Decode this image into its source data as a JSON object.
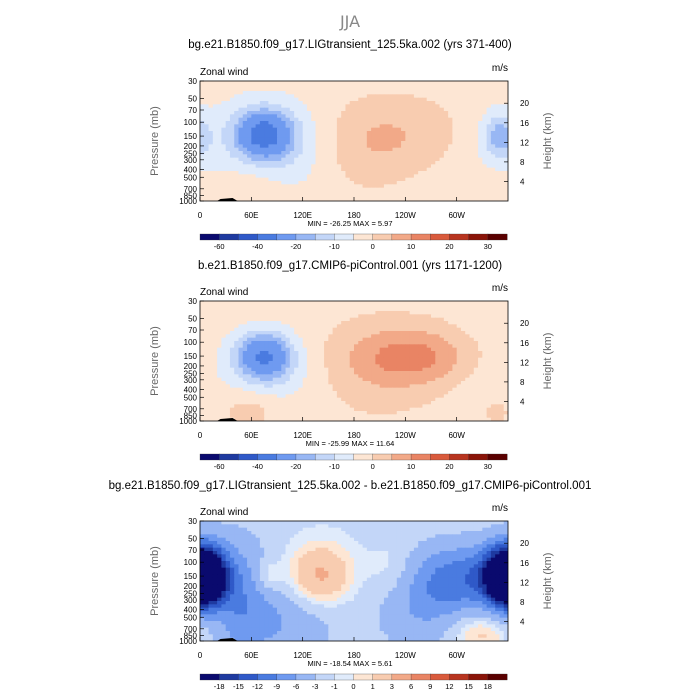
{
  "figure": {
    "season_title": "JJA"
  },
  "colors": {
    "main_scale": [
      "#0a0a6e",
      "#1e3aa0",
      "#2f59c8",
      "#4a7be0",
      "#6f9af0",
      "#98b7f4",
      "#c3d6f8",
      "#e0ebfb",
      "#fde6d4",
      "#f8ccb0",
      "#f2a988",
      "#e98464",
      "#d95a3c",
      "#b8341f",
      "#8a1408",
      "#5a0000"
    ],
    "diff_scale": [
      "#0a0a6e",
      "#1e3aa0",
      "#2f59c8",
      "#4a7be0",
      "#6f9af0",
      "#98b7f4",
      "#c3d6f8",
      "#e0ebfb",
      "#fde6d4",
      "#f8ccb0",
      "#f2a988",
      "#e98464",
      "#d95a3c",
      "#b8341f",
      "#8a1408",
      "#5a0000"
    ]
  },
  "chart_data": [
    {
      "type": "heatmap",
      "title": "bg.e21.B1850.f09_g17.LIGtransient_125.5ka.002 (yrs 371-400)",
      "variable_label": "Zonal wind",
      "units_label": "m/s",
      "ylabel_left": "Pressure (mb)",
      "ylabel_right": "Height (km)",
      "pressure_ticks": [
        "30",
        "50",
        "70",
        "100",
        "150",
        "200",
        "250",
        "300",
        "400",
        "500",
        "700",
        "850",
        "1000"
      ],
      "height_ticks": [
        "20",
        "16",
        "12",
        "8",
        "4"
      ],
      "x_ticks": [
        "0",
        "60E",
        "120E",
        "180",
        "120W",
        "60W"
      ],
      "stats": "MIN = -26.25   MAX =   5.97",
      "min": -26.25,
      "max": 5.97,
      "colorbar_labels": [
        "-60",
        "-40",
        "-20",
        "-10",
        "0",
        "10",
        "20",
        "30"
      ],
      "features": [
        {
          "lon": 75,
          "p": 140,
          "value": -26,
          "dlon": 22,
          "dlogp": 0.2
        },
        {
          "lon": 80,
          "p": 200,
          "value": -10,
          "dlon": 45,
          "dlogp": 0.4
        },
        {
          "lon": 350,
          "p": 150,
          "value": -14,
          "dlon": 14,
          "dlogp": 0.2
        },
        {
          "lon": 240,
          "p": 140,
          "value": 6,
          "dlon": 55,
          "dlogp": 0.35
        },
        {
          "lon": 190,
          "p": 220,
          "value": 4,
          "dlon": 40,
          "dlogp": 0.4
        },
        {
          "lon": 60,
          "p": 650,
          "value": 5,
          "dlon": 28,
          "dlogp": 0.25
        },
        {
          "lon": 330,
          "p": 800,
          "value": 4,
          "dlon": 25,
          "dlogp": 0.2
        },
        {
          "lon": 330,
          "p": 350,
          "value": -2,
          "dlon": 40,
          "dlogp": 0.6
        }
      ]
    },
    {
      "type": "heatmap",
      "title": "b.e21.B1850.f09_g17.CMIP6-piControl.001 (yrs 1171-1200)",
      "variable_label": "Zonal wind",
      "units_label": "m/s",
      "ylabel_left": "Pressure (mb)",
      "ylabel_right": "Height (km)",
      "pressure_ticks": [
        "30",
        "50",
        "70",
        "100",
        "150",
        "200",
        "250",
        "300",
        "400",
        "500",
        "700",
        "850",
        "1000"
      ],
      "height_ticks": [
        "20",
        "16",
        "12",
        "8",
        "4"
      ],
      "x_ticks": [
        "0",
        "60E",
        "120E",
        "180",
        "120W",
        "60W"
      ],
      "stats": "MIN = -25.99   MAX =  11.64",
      "min": -25.99,
      "max": 11.64,
      "colorbar_labels": [
        "-60",
        "-40",
        "-20",
        "-10",
        "0",
        "10",
        "20",
        "30"
      ],
      "features": [
        {
          "lon": 75,
          "p": 150,
          "value": -25,
          "dlon": 22,
          "dlogp": 0.2
        },
        {
          "lon": 80,
          "p": 250,
          "value": -6,
          "dlon": 40,
          "dlogp": 0.35
        },
        {
          "lon": 255,
          "p": 150,
          "value": 11,
          "dlon": 50,
          "dlogp": 0.25
        },
        {
          "lon": 210,
          "p": 200,
          "value": 6,
          "dlon": 55,
          "dlogp": 0.45
        },
        {
          "lon": 60,
          "p": 700,
          "value": 6,
          "dlon": 25,
          "dlogp": 0.2
        },
        {
          "lon": 345,
          "p": 750,
          "value": 4,
          "dlon": 20,
          "dlogp": 0.2
        },
        {
          "lon": 330,
          "p": 250,
          "value": -2,
          "dlon": 30,
          "dlogp": 0.5
        }
      ]
    },
    {
      "type": "heatmap",
      "title": "bg.e21.B1850.f09_g17.LIGtransient_125.5ka.002 - b.e21.B1850.f09_g17.CMIP6-piControl.001",
      "variable_label": "Zonal wind",
      "units_label": "m/s",
      "ylabel_left": "Pressure (mb)",
      "ylabel_right": "Height (km)",
      "pressure_ticks": [
        "30",
        "50",
        "70",
        "100",
        "150",
        "200",
        "250",
        "300",
        "400",
        "500",
        "700",
        "850",
        "1000"
      ],
      "height_ticks": [
        "20",
        "16",
        "12",
        "8",
        "4"
      ],
      "x_ticks": [
        "0",
        "60E",
        "120E",
        "180",
        "120W",
        "60W"
      ],
      "stats": "MIN = -18.54   MAX =   5.61",
      "min": -18.54,
      "max": 5.61,
      "colorbar_labels": [
        "-18",
        "-15",
        "-12",
        "-9",
        "-6",
        "-3",
        "-1",
        "0",
        "1",
        "3",
        "6",
        "9",
        "12",
        "15",
        "18"
      ],
      "features": [
        {
          "lon": 5,
          "p": 150,
          "value": -18,
          "dlon": 18,
          "dlogp": 0.25
        },
        {
          "lon": 358,
          "p": 150,
          "value": -16,
          "dlon": 18,
          "dlogp": 0.25
        },
        {
          "lon": 40,
          "p": 250,
          "value": -6,
          "dlon": 30,
          "dlogp": 0.5
        },
        {
          "lon": 310,
          "p": 160,
          "value": -9,
          "dlon": 40,
          "dlogp": 0.3
        },
        {
          "lon": 260,
          "p": 400,
          "value": -4,
          "dlon": 35,
          "dlogp": 0.4
        },
        {
          "lon": 140,
          "p": 150,
          "value": 5,
          "dlon": 28,
          "dlogp": 0.3
        },
        {
          "lon": 80,
          "p": 150,
          "value": 3,
          "dlon": 10,
          "dlogp": 0.15
        },
        {
          "lon": 225,
          "p": 130,
          "value": 2,
          "dlon": 18,
          "dlogp": 0.25
        },
        {
          "lon": 330,
          "p": 750,
          "value": 4,
          "dlon": 30,
          "dlogp": 0.2
        },
        {
          "lon": 90,
          "p": 600,
          "value": -4,
          "dlon": 50,
          "dlogp": 0.3
        },
        {
          "lon": 20,
          "p": 500,
          "value": 2,
          "dlon": 15,
          "dlogp": 0.2
        }
      ]
    }
  ]
}
